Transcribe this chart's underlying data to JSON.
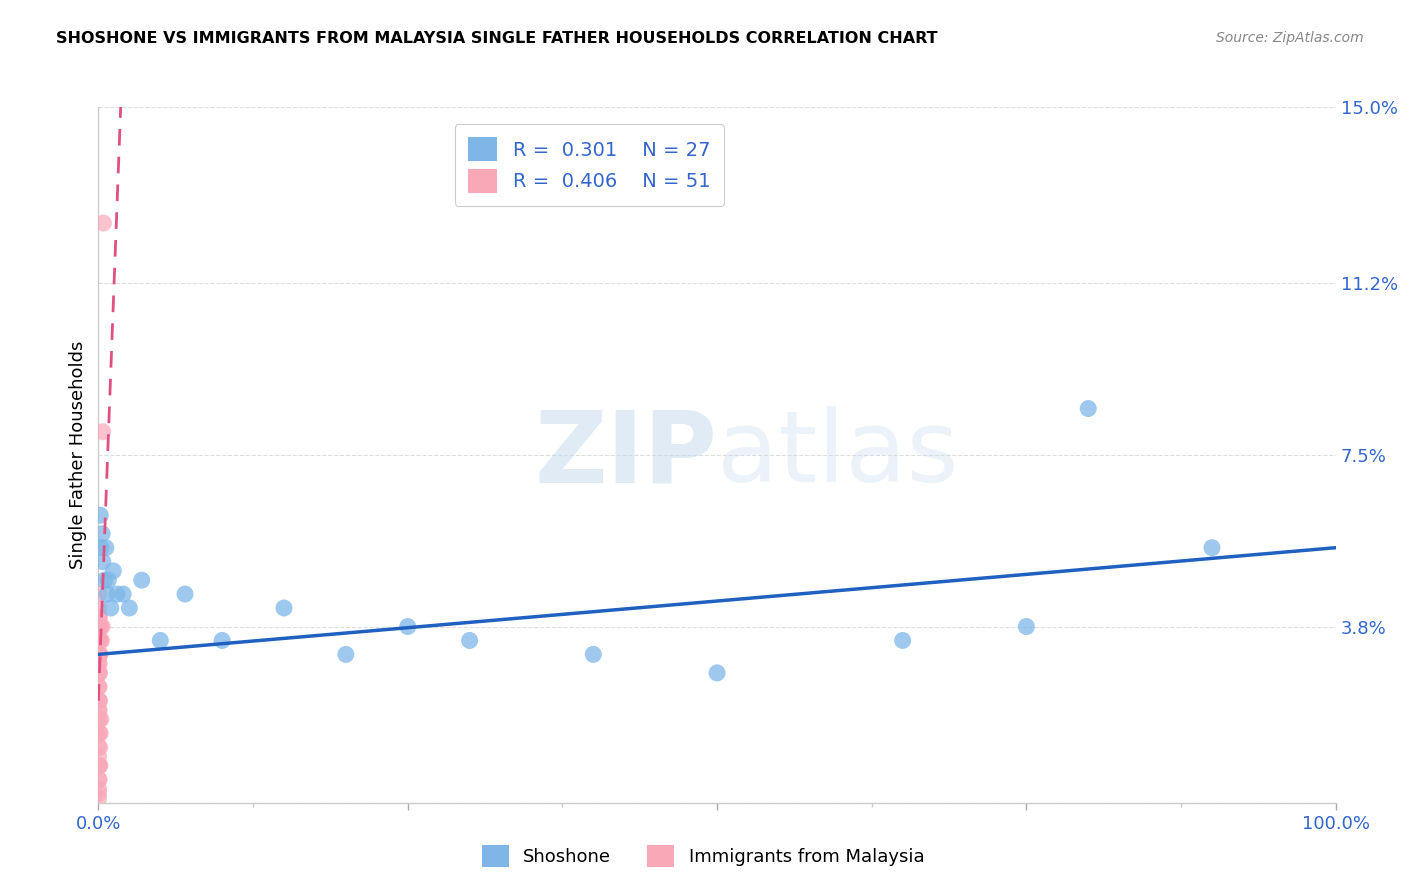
{
  "title": "SHOSHONE VS IMMIGRANTS FROM MALAYSIA SINGLE FATHER HOUSEHOLDS CORRELATION CHART",
  "source": "Source: ZipAtlas.com",
  "ylabel_label": "Single Father Households",
  "legend_label1": "Shoshone",
  "legend_label2": "Immigrants from Malaysia",
  "R1": "0.301",
  "N1": "27",
  "R2": "0.406",
  "N2": "51",
  "color_blue": "#7EB6E8",
  "color_pink": "#F9A8B8",
  "color_line_blue": "#2060C0",
  "color_line_pink": "#E05080",
  "color_axis_labels": "#3366CC",
  "watermark_zip": "ZIP",
  "watermark_atlas": "atlas",
  "shoshone_x": [
    0.15,
    0.2,
    0.3,
    0.35,
    0.5,
    0.6,
    0.7,
    0.8,
    1.0,
    1.2,
    1.5,
    2.0,
    2.5,
    3.5,
    5.0,
    7.0,
    10.0,
    15.0,
    20.0,
    25.0,
    30.0,
    40.0,
    50.0,
    65.0,
    75.0,
    80.0,
    90.0
  ],
  "shoshone_y": [
    6.2,
    5.5,
    5.8,
    5.2,
    4.8,
    5.5,
    4.5,
    4.8,
    4.2,
    5.0,
    4.5,
    4.5,
    4.2,
    4.8,
    3.5,
    4.5,
    3.5,
    4.2,
    3.2,
    3.8,
    3.5,
    3.2,
    2.8,
    3.5,
    3.8,
    8.5,
    5.5
  ],
  "malaysia_x": [
    0.02,
    0.02,
    0.02,
    0.02,
    0.02,
    0.02,
    0.02,
    0.02,
    0.02,
    0.02,
    0.02,
    0.02,
    0.02,
    0.02,
    0.02,
    0.02,
    0.02,
    0.02,
    0.02,
    0.02,
    0.05,
    0.05,
    0.05,
    0.05,
    0.05,
    0.05,
    0.05,
    0.05,
    0.05,
    0.05,
    0.08,
    0.08,
    0.08,
    0.08,
    0.08,
    0.08,
    0.08,
    0.1,
    0.1,
    0.1,
    0.12,
    0.12,
    0.12,
    0.15,
    0.15,
    0.2,
    0.2,
    0.25,
    0.3,
    0.35,
    0.4
  ],
  "malaysia_y": [
    3.5,
    3.2,
    3.0,
    2.8,
    2.5,
    2.2,
    2.0,
    1.8,
    1.5,
    1.2,
    1.0,
    0.8,
    0.5,
    0.3,
    0.2,
    0.1,
    3.8,
    4.0,
    4.2,
    4.5,
    3.8,
    3.5,
    3.2,
    3.0,
    2.8,
    2.5,
    2.2,
    2.0,
    1.5,
    0.5,
    4.0,
    3.5,
    3.2,
    2.8,
    2.2,
    1.8,
    0.8,
    3.8,
    3.2,
    1.2,
    3.8,
    3.2,
    0.8,
    3.5,
    1.5,
    3.8,
    1.8,
    3.5,
    3.8,
    8.0,
    12.5
  ],
  "blue_line_x0": 0.0,
  "blue_line_y0": 3.2,
  "blue_line_x1": 100.0,
  "blue_line_y1": 5.5,
  "pink_line_x0": 0.0,
  "pink_line_y0": 2.2,
  "pink_line_x1": 1.8,
  "pink_line_y1": 15.0,
  "xmin": 0.0,
  "xmax": 100.0,
  "ymin": 0.0,
  "ymax": 15.0,
  "yticks": [
    0.0,
    3.8,
    7.5,
    11.2,
    15.0
  ],
  "ytick_labels": [
    "",
    "3.8%",
    "7.5%",
    "11.2%",
    "15.0%"
  ],
  "xtick_labels": [
    "0.0%",
    "100.0%"
  ]
}
